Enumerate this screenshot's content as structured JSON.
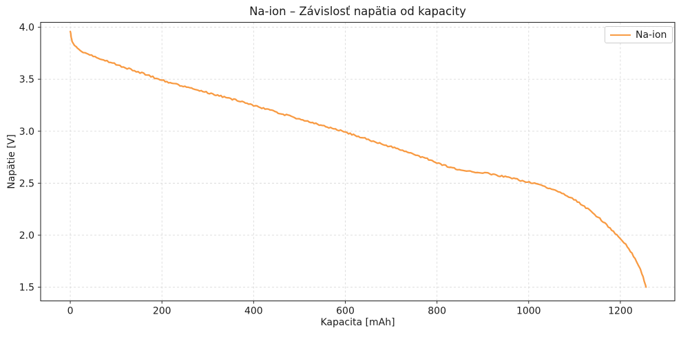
{
  "chart_data": {
    "type": "line",
    "title": "Na-ion – Závislosť napätia od kapacity",
    "xlabel": "Kapacita [mAh]",
    "ylabel": "Napätie [V]",
    "legend": [
      "Na-ion"
    ],
    "legend_position": "upper right",
    "grid": true,
    "grid_style": "dashed",
    "xlim": [
      -64.7,
      1318.8
    ],
    "ylim": [
      1.368,
      4.047
    ],
    "x_ticks": [
      0,
      200,
      400,
      600,
      800,
      1000,
      1200
    ],
    "y_ticks": [
      1.5,
      2.0,
      2.5,
      3.0,
      3.5,
      4.0
    ],
    "line_color": "#f89a42",
    "grid_color": "#d9d9d9",
    "spine_color": "#2b2b2b",
    "tick_label_color": "#1a1a1a",
    "noise_v": 0.008,
    "series": [
      {
        "name": "Na-ion",
        "points": [
          [
            0,
            3.96
          ],
          [
            1,
            3.935
          ],
          [
            2,
            3.908
          ],
          [
            3,
            3.885
          ],
          [
            4,
            3.865
          ],
          [
            6,
            3.845
          ],
          [
            9,
            3.825
          ],
          [
            13,
            3.805
          ],
          [
            18,
            3.788
          ],
          [
            25,
            3.768
          ],
          [
            35,
            3.748
          ],
          [
            50,
            3.722
          ],
          [
            65,
            3.7
          ],
          [
            80,
            3.676
          ],
          [
            100,
            3.642
          ],
          [
            120,
            3.612
          ],
          [
            140,
            3.583
          ],
          [
            160,
            3.553
          ],
          [
            180,
            3.521
          ],
          [
            200,
            3.49
          ],
          [
            225,
            3.459
          ],
          [
            250,
            3.428
          ],
          [
            275,
            3.399
          ],
          [
            300,
            3.37
          ],
          [
            325,
            3.341
          ],
          [
            350,
            3.312
          ],
          [
            375,
            3.281
          ],
          [
            400,
            3.248
          ],
          [
            425,
            3.215
          ],
          [
            450,
            3.182
          ],
          [
            475,
            3.15
          ],
          [
            500,
            3.118
          ],
          [
            525,
            3.086
          ],
          [
            550,
            3.054
          ],
          [
            575,
            3.022
          ],
          [
            600,
            2.99
          ],
          [
            625,
            2.955
          ],
          [
            650,
            2.92
          ],
          [
            675,
            2.885
          ],
          [
            700,
            2.85
          ],
          [
            725,
            2.815
          ],
          [
            750,
            2.778
          ],
          [
            775,
            2.74
          ],
          [
            800,
            2.7
          ],
          [
            815,
            2.672
          ],
          [
            830,
            2.65
          ],
          [
            845,
            2.633
          ],
          [
            860,
            2.621
          ],
          [
            880,
            2.61
          ],
          [
            900,
            2.6
          ],
          [
            915,
            2.591
          ],
          [
            930,
            2.578
          ],
          [
            945,
            2.564
          ],
          [
            960,
            2.55
          ],
          [
            975,
            2.535
          ],
          [
            990,
            2.52
          ],
          [
            1005,
            2.505
          ],
          [
            1020,
            2.488
          ],
          [
            1035,
            2.468
          ],
          [
            1050,
            2.446
          ],
          [
            1065,
            2.42
          ],
          [
            1080,
            2.388
          ],
          [
            1095,
            2.352
          ],
          [
            1110,
            2.312
          ],
          [
            1125,
            2.266
          ],
          [
            1140,
            2.215
          ],
          [
            1155,
            2.158
          ],
          [
            1170,
            2.096
          ],
          [
            1185,
            2.032
          ],
          [
            1200,
            1.97
          ],
          [
            1212,
            1.908
          ],
          [
            1222,
            1.848
          ],
          [
            1232,
            1.778
          ],
          [
            1240,
            1.706
          ],
          [
            1247,
            1.632
          ],
          [
            1252,
            1.566
          ],
          [
            1255,
            1.52
          ],
          [
            1256,
            1.5
          ]
        ]
      }
    ]
  }
}
